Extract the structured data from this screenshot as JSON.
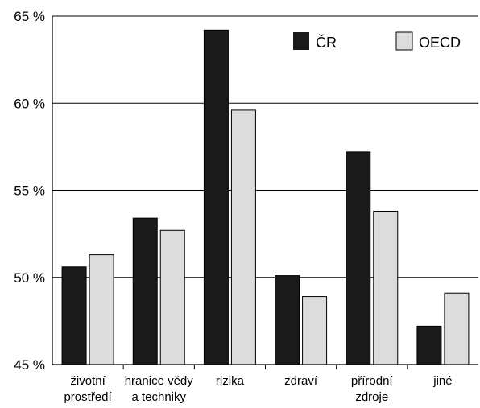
{
  "chart_data": {
    "type": "bar",
    "categories": [
      [
        "životní",
        "prostředí"
      ],
      [
        "hranice vědy",
        "a techniky"
      ],
      [
        "rizika"
      ],
      [
        "zdraví"
      ],
      [
        "přírodní",
        "zdroje"
      ],
      [
        "jiné"
      ]
    ],
    "series": [
      {
        "name": "ČR",
        "color": "#1a1a1a",
        "values": [
          50.6,
          53.4,
          64.2,
          50.1,
          57.2,
          47.2
        ]
      },
      {
        "name": "OECD",
        "color": "#dcdcdc",
        "values": [
          51.3,
          52.7,
          59.6,
          48.9,
          53.8,
          49.1
        ]
      }
    ],
    "yticks": [
      "45 %",
      "50 %",
      "55 %",
      "60 %",
      "65 %"
    ],
    "ylim": [
      45,
      65
    ],
    "grid": true,
    "legend_position": "top-right"
  }
}
